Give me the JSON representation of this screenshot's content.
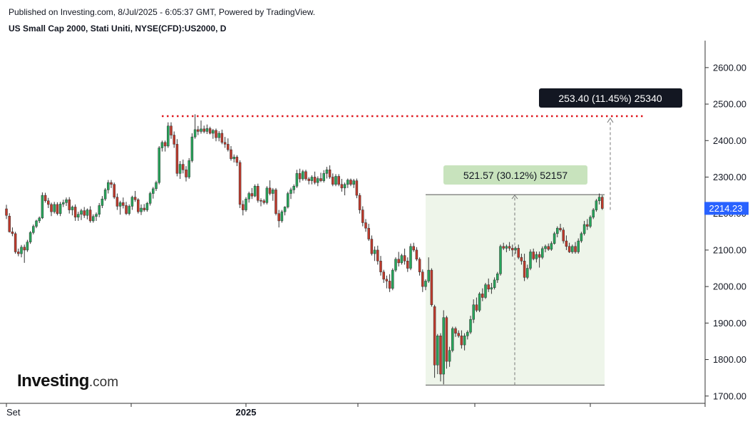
{
  "header": {
    "published": "Published on Investing.com, 8/Jul/2025 - 6:05:37 GMT, Powered by TradingView.",
    "title": "US Small Cap 2000, Stati Uniti, NYSE(CFD):US2000, D"
  },
  "logo": {
    "main": "Investing",
    "suffix": ".com"
  },
  "colors": {
    "up": "#26a65b",
    "down": "#c0392b",
    "resistance": "#e0191f",
    "price_label": "#2962ff",
    "range_fill": "#eef5ea",
    "range_label": "#c8e3bd",
    "dark_label": "#131722"
  },
  "chart_data": {
    "type": "candlestick",
    "ylim": [
      1680,
      2670
    ],
    "yticks": [
      1700,
      1800,
      1900,
      2000,
      2100,
      2200,
      2300,
      2400,
      2500,
      2600
    ],
    "ytick_labels": [
      "1700.00",
      "1800.00",
      "1900.00",
      "2000.00",
      "2100.00",
      "2200.00",
      "2300.00",
      "2400.00",
      "2500.00",
      "2600.00"
    ],
    "xticks": [
      "Set",
      "",
      "2025",
      "",
      "",
      "",
      ""
    ],
    "last_price": 2214.23,
    "last_price_label": "2214.23",
    "resistance_level": 2467,
    "measure_1": {
      "from": 1730,
      "to": 2252,
      "label": "521.57 (30.12%) 52157"
    },
    "measure_2": {
      "from": 2214,
      "to": 2467,
      "label": "253.40 (11.45%) 25340"
    },
    "candles": [
      [
        2213,
        2224,
        2185,
        2195
      ],
      [
        2193,
        2201,
        2148,
        2150
      ],
      [
        2150,
        2162,
        2138,
        2145
      ],
      [
        2145,
        2150,
        2090,
        2095
      ],
      [
        2095,
        2104,
        2083,
        2090
      ],
      [
        2090,
        2114,
        2080,
        2108
      ],
      [
        2108,
        2115,
        2065,
        2100
      ],
      [
        2100,
        2128,
        2095,
        2122
      ],
      [
        2122,
        2152,
        2117,
        2148
      ],
      [
        2148,
        2170,
        2143,
        2165
      ],
      [
        2165,
        2183,
        2160,
        2180
      ],
      [
        2180,
        2192,
        2174,
        2188
      ],
      [
        2188,
        2258,
        2185,
        2250
      ],
      [
        2250,
        2257,
        2230,
        2235
      ],
      [
        2235,
        2243,
        2215,
        2225
      ],
      [
        2225,
        2230,
        2193,
        2205
      ],
      [
        2205,
        2232,
        2200,
        2225
      ],
      [
        2225,
        2231,
        2195,
        2200
      ],
      [
        2200,
        2232,
        2193,
        2226
      ],
      [
        2226,
        2238,
        2218,
        2230
      ],
      [
        2230,
        2244,
        2221,
        2238
      ],
      [
        2238,
        2245,
        2200,
        2210
      ],
      [
        2210,
        2222,
        2195,
        2218
      ],
      [
        2218,
        2225,
        2180,
        2190
      ],
      [
        2190,
        2205,
        2180,
        2198
      ],
      [
        2198,
        2213,
        2182,
        2208
      ],
      [
        2208,
        2218,
        2188,
        2195
      ],
      [
        2195,
        2214,
        2184,
        2210
      ],
      [
        2210,
        2220,
        2175,
        2180
      ],
      [
        2180,
        2198,
        2175,
        2192
      ],
      [
        2192,
        2203,
        2180,
        2198
      ],
      [
        2198,
        2229,
        2190,
        2222
      ],
      [
        2222,
        2248,
        2215,
        2240
      ],
      [
        2240,
        2270,
        2235,
        2265
      ],
      [
        2265,
        2292,
        2255,
        2285
      ],
      [
        2285,
        2292,
        2270,
        2280
      ],
      [
        2280,
        2285,
        2240,
        2245
      ],
      [
        2245,
        2255,
        2210,
        2220
      ],
      [
        2220,
        2235,
        2197,
        2230
      ],
      [
        2230,
        2244,
        2214,
        2222
      ],
      [
        2222,
        2232,
        2196,
        2200
      ],
      [
        2200,
        2225,
        2195,
        2220
      ],
      [
        2220,
        2249,
        2210,
        2245
      ],
      [
        2245,
        2262,
        2232,
        2238
      ],
      [
        2238,
        2242,
        2200,
        2205
      ],
      [
        2205,
        2225,
        2196,
        2215
      ],
      [
        2215,
        2226,
        2205,
        2210
      ],
      [
        2210,
        2232,
        2205,
        2228
      ],
      [
        2228,
        2260,
        2222,
        2255
      ],
      [
        2255,
        2273,
        2241,
        2268
      ],
      [
        2268,
        2290,
        2262,
        2285
      ],
      [
        2285,
        2385,
        2280,
        2380
      ],
      [
        2380,
        2400,
        2370,
        2395
      ],
      [
        2395,
        2400,
        2370,
        2385
      ],
      [
        2385,
        2450,
        2380,
        2440
      ],
      [
        2440,
        2450,
        2405,
        2415
      ],
      [
        2415,
        2425,
        2380,
        2390
      ],
      [
        2390,
        2404,
        2302,
        2310
      ],
      [
        2310,
        2344,
        2295,
        2335
      ],
      [
        2335,
        2348,
        2310,
        2320
      ],
      [
        2320,
        2330,
        2288,
        2300
      ],
      [
        2300,
        2352,
        2295,
        2345
      ],
      [
        2345,
        2420,
        2340,
        2410
      ],
      [
        2410,
        2472,
        2405,
        2430
      ],
      [
        2430,
        2440,
        2415,
        2425
      ],
      [
        2425,
        2455,
        2419,
        2432
      ],
      [
        2432,
        2441,
        2420,
        2425
      ],
      [
        2425,
        2444,
        2418,
        2433
      ],
      [
        2433,
        2438,
        2417,
        2420
      ],
      [
        2420,
        2432,
        2405,
        2428
      ],
      [
        2428,
        2433,
        2398,
        2408
      ],
      [
        2408,
        2426,
        2398,
        2420
      ],
      [
        2420,
        2430,
        2390,
        2395
      ],
      [
        2395,
        2410,
        2380,
        2390
      ],
      [
        2390,
        2406,
        2370,
        2375
      ],
      [
        2375,
        2385,
        2345,
        2350
      ],
      [
        2350,
        2362,
        2340,
        2355
      ],
      [
        2355,
        2360,
        2330,
        2340
      ],
      [
        2340,
        2346,
        2215,
        2225
      ],
      [
        2225,
        2236,
        2195,
        2210
      ],
      [
        2210,
        2245,
        2205,
        2240
      ],
      [
        2240,
        2260,
        2230,
        2255
      ],
      [
        2255,
        2270,
        2240,
        2248
      ],
      [
        2248,
        2280,
        2245,
        2275
      ],
      [
        2275,
        2282,
        2230,
        2236
      ],
      [
        2236,
        2242,
        2220,
        2235
      ],
      [
        2235,
        2240,
        2225,
        2230
      ],
      [
        2230,
        2275,
        2225,
        2270
      ],
      [
        2270,
        2291,
        2250,
        2255
      ],
      [
        2255,
        2270,
        2235,
        2265
      ],
      [
        2265,
        2270,
        2195,
        2200
      ],
      [
        2200,
        2210,
        2162,
        2180
      ],
      [
        2180,
        2210,
        2175,
        2205
      ],
      [
        2205,
        2220,
        2195,
        2218
      ],
      [
        2218,
        2260,
        2214,
        2255
      ],
      [
        2255,
        2271,
        2240,
        2265
      ],
      [
        2265,
        2280,
        2255,
        2275
      ],
      [
        2275,
        2320,
        2270,
        2310
      ],
      [
        2310,
        2323,
        2285,
        2295
      ],
      [
        2295,
        2320,
        2290,
        2315
      ],
      [
        2315,
        2320,
        2290,
        2295
      ],
      [
        2295,
        2300,
        2280,
        2290
      ],
      [
        2290,
        2305,
        2280,
        2300
      ],
      [
        2300,
        2315,
        2280,
        2285
      ],
      [
        2285,
        2302,
        2275,
        2296
      ],
      [
        2296,
        2312,
        2286,
        2290
      ],
      [
        2290,
        2319,
        2285,
        2310
      ],
      [
        2310,
        2328,
        2296,
        2320
      ],
      [
        2320,
        2332,
        2295,
        2300
      ],
      [
        2300,
        2310,
        2275,
        2280
      ],
      [
        2280,
        2308,
        2275,
        2302
      ],
      [
        2302,
        2308,
        2275,
        2280
      ],
      [
        2280,
        2295,
        2260,
        2270
      ],
      [
        2270,
        2285,
        2250,
        2280
      ],
      [
        2280,
        2296,
        2270,
        2292
      ],
      [
        2292,
        2296,
        2275,
        2280
      ],
      [
        2280,
        2295,
        2270,
        2290
      ],
      [
        2290,
        2296,
        2242,
        2250
      ],
      [
        2250,
        2256,
        2200,
        2210
      ],
      [
        2210,
        2220,
        2165,
        2175
      ],
      [
        2175,
        2185,
        2150,
        2160
      ],
      [
        2160,
        2172,
        2125,
        2130
      ],
      [
        2130,
        2140,
        2085,
        2090
      ],
      [
        2090,
        2110,
        2070,
        2100
      ],
      [
        2100,
        2112,
        2060,
        2070
      ],
      [
        2070,
        2084,
        2030,
        2040
      ],
      [
        2040,
        2046,
        2010,
        2020
      ],
      [
        2020,
        2030,
        1995,
        2015
      ],
      [
        2015,
        2034,
        1985,
        1995
      ],
      [
        1995,
        2050,
        1990,
        2045
      ],
      [
        2045,
        2080,
        2040,
        2075
      ],
      [
        2075,
        2095,
        2055,
        2065
      ],
      [
        2065,
        2090,
        2060,
        2085
      ],
      [
        2085,
        2104,
        2060,
        2070
      ],
      [
        2070,
        2080,
        2040,
        2050
      ],
      [
        2050,
        2118,
        2045,
        2110
      ],
      [
        2110,
        2120,
        2095,
        2100
      ],
      [
        2100,
        2108,
        2070,
        2075
      ],
      [
        2075,
        2080,
        2030,
        2040
      ],
      [
        2040,
        2047,
        1985,
        2000
      ],
      [
        2000,
        2020,
        1990,
        2015
      ],
      [
        2015,
        2080,
        2010,
        2045
      ],
      [
        2045,
        2050,
        1945,
        1950
      ],
      [
        1945,
        1950,
        1750,
        1785
      ],
      [
        1785,
        1870,
        1760,
        1865
      ],
      [
        1865,
        1872,
        1740,
        1760
      ],
      [
        1760,
        1935,
        1732,
        1915
      ],
      [
        1915,
        1920,
        1775,
        1795
      ],
      [
        1795,
        1835,
        1780,
        1825
      ],
      [
        1825,
        1890,
        1820,
        1885
      ],
      [
        1885,
        1890,
        1862,
        1872
      ],
      [
        1872,
        1880,
        1860,
        1865
      ],
      [
        1865,
        1880,
        1830,
        1840
      ],
      [
        1840,
        1872,
        1825,
        1865
      ],
      [
        1865,
        1880,
        1855,
        1875
      ],
      [
        1875,
        1920,
        1870,
        1910
      ],
      [
        1910,
        1965,
        1900,
        1950
      ],
      [
        1950,
        1970,
        1930,
        1935
      ],
      [
        1935,
        1985,
        1930,
        1980
      ],
      [
        1980,
        1995,
        1960,
        1970
      ],
      [
        1970,
        2010,
        1966,
        2005
      ],
      [
        2005,
        2022,
        1985,
        1993
      ],
      [
        1993,
        2010,
        1980,
        1997
      ],
      [
        1997,
        2025,
        1992,
        2018
      ],
      [
        2018,
        2040,
        2010,
        2035
      ],
      [
        2035,
        2115,
        2030,
        2110
      ],
      [
        2110,
        2120,
        2100,
        2105
      ],
      [
        2105,
        2115,
        2094,
        2110
      ],
      [
        2110,
        2122,
        2098,
        2105
      ],
      [
        2105,
        2115,
        2082,
        2100
      ],
      [
        2100,
        2110,
        2090,
        2105
      ],
      [
        2105,
        2115,
        2075,
        2080
      ],
      [
        2080,
        2090,
        2060,
        2070
      ],
      [
        2070,
        2090,
        2015,
        2025
      ],
      [
        2025,
        2060,
        2020,
        2050
      ],
      [
        2050,
        2102,
        2045,
        2095
      ],
      [
        2095,
        2104,
        2072,
        2076
      ],
      [
        2076,
        2096,
        2066,
        2088
      ],
      [
        2088,
        2096,
        2052,
        2080
      ],
      [
        2080,
        2110,
        2075,
        2104
      ],
      [
        2104,
        2115,
        2094,
        2110
      ],
      [
        2110,
        2118,
        2098,
        2102
      ],
      [
        2102,
        2124,
        2098,
        2118
      ],
      [
        2118,
        2150,
        2115,
        2145
      ],
      [
        2145,
        2165,
        2135,
        2160
      ],
      [
        2160,
        2172,
        2150,
        2155
      ],
      [
        2155,
        2162,
        2118,
        2125
      ],
      [
        2125,
        2140,
        2100,
        2110
      ],
      [
        2110,
        2120,
        2092,
        2095
      ],
      [
        2095,
        2115,
        2090,
        2110
      ],
      [
        2110,
        2122,
        2090,
        2095
      ],
      [
        2095,
        2132,
        2090,
        2125
      ],
      [
        2125,
        2150,
        2120,
        2145
      ],
      [
        2145,
        2180,
        2140,
        2170
      ],
      [
        2170,
        2185,
        2155,
        2165
      ],
      [
        2165,
        2195,
        2160,
        2190
      ],
      [
        2190,
        2215,
        2185,
        2210
      ],
      [
        2210,
        2240,
        2205,
        2235
      ],
      [
        2235,
        2255,
        2225,
        2245
      ],
      [
        2245,
        2250,
        2210,
        2214
      ]
    ]
  }
}
